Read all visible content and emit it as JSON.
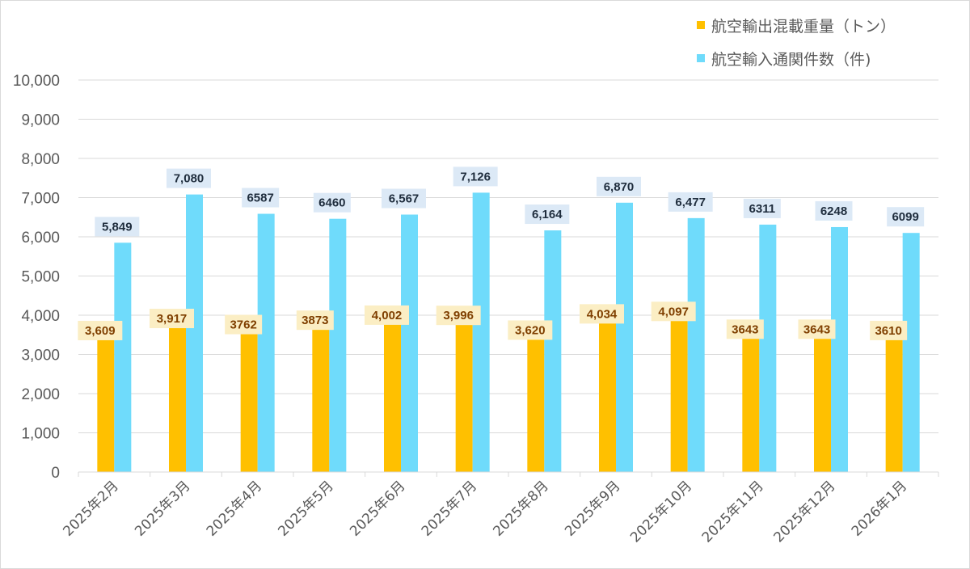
{
  "chart_data": {
    "type": "bar",
    "title": "",
    "xlabel": "",
    "ylabel": "",
    "ylim": [
      0,
      10000
    ],
    "yticks": [
      0,
      1000,
      2000,
      3000,
      4000,
      5000,
      6000,
      7000,
      8000,
      9000,
      10000
    ],
    "ytick_labels": [
      "0",
      "1,000",
      "2,000",
      "3,000",
      "4,000",
      "5,000",
      "6,000",
      "7,000",
      "8,000",
      "9,000",
      "10,000"
    ],
    "grid": true,
    "legend_position": "top-right",
    "categories": [
      "2025年2月",
      "2025年3月",
      "2025年4月",
      "2025年5月",
      "2025年6月",
      "2025年7月",
      "2025年8月",
      "2025年9月",
      "2025年10月",
      "2025年11月",
      "2025年12月",
      "2026年1月"
    ],
    "series": [
      {
        "name": "航空輸出混載重量（トン）",
        "color": "#ffc000",
        "label_bg": "#fbeec4",
        "label_color": "#7f3f00",
        "values": [
          3609,
          3917,
          3762,
          3873,
          4002,
          3996,
          3620,
          4034,
          4097,
          3643,
          3643,
          3610
        ],
        "labels": [
          "3,609",
          "3,917",
          "3762",
          "3873",
          "4,002",
          "3,996",
          "3,620",
          "4,034",
          "4,097",
          "3643",
          "3643",
          "3610"
        ]
      },
      {
        "name": "航空輸入通関件数（件)",
        "color": "#6fdbfb",
        "label_bg": "#dce9f6",
        "label_color": "#1f2d3d",
        "values": [
          5849,
          7080,
          6587,
          6460,
          6567,
          7126,
          6164,
          6870,
          6477,
          6311,
          6248,
          6099
        ],
        "labels": [
          "5,849",
          "7,080",
          "6587",
          "6460",
          "6,567",
          "7,126",
          "6,164",
          "6,870",
          "6,477",
          "6311",
          "6248",
          "6099"
        ]
      }
    ]
  }
}
